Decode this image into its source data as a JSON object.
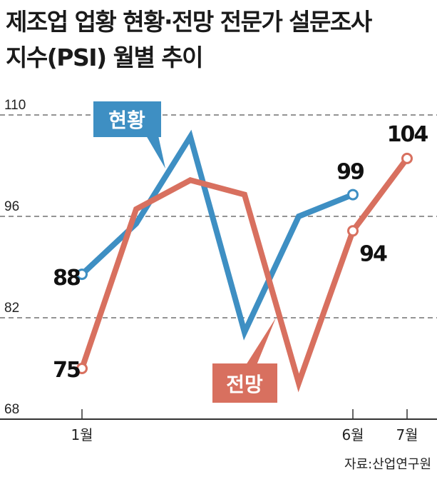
{
  "title_line1": "제조업 업황 현황·전망 전문가 설문조사",
  "title_line2": "지수(PSI) 월별 추이",
  "source": "자료:산업연구원",
  "chart_data": {
    "type": "line",
    "title": "제조업 업황 현황·전망 전문가 설문조사 지수(PSI) 월별 추이",
    "x": [
      1,
      2,
      3,
      4,
      5,
      6,
      7
    ],
    "x_tick_labels": [
      {
        "x": 1,
        "label": "1월"
      },
      {
        "x": 6,
        "label": "6월"
      },
      {
        "x": 7,
        "label": "7월"
      }
    ],
    "y_ticks": [
      68,
      82,
      96,
      110
    ],
    "ylim": [
      68,
      110
    ],
    "grid": "horizontal dashed",
    "series": [
      {
        "name": "현황",
        "color": "#3e8fc3",
        "values": [
          88,
          95,
          107,
          80,
          96,
          99,
          null
        ],
        "labels": [
          {
            "x": 1,
            "text": "88"
          },
          {
            "x": 6,
            "text": "99"
          }
        ]
      },
      {
        "name": "전망",
        "color": "#d8705f",
        "values": [
          75,
          97,
          101,
          99,
          73,
          94,
          104
        ],
        "labels": [
          {
            "x": 1,
            "text": "75"
          },
          {
            "x": 6,
            "text": "94"
          },
          {
            "x": 7,
            "text": "104"
          }
        ]
      }
    ]
  }
}
